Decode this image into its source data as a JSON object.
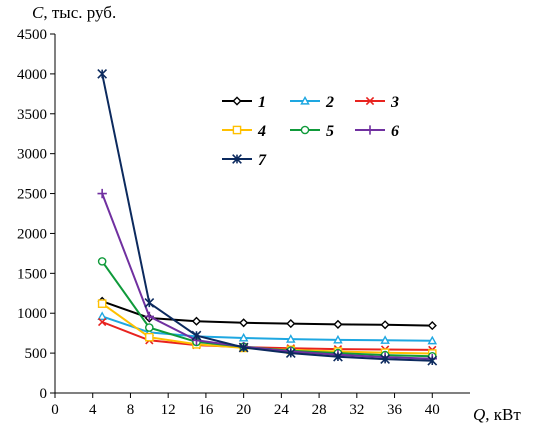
{
  "chart_data": {
    "type": "line",
    "title": "",
    "ylabel": {
      "symbol": "C",
      "unit": ", тыс. руб."
    },
    "xlabel": {
      "symbol": "Q",
      "unit": ", кВт"
    },
    "xlim": [
      0,
      44
    ],
    "ylim": [
      0,
      4500
    ],
    "grid": false,
    "x_ticks": [
      {
        "value": 0,
        "label": "0"
      },
      {
        "value": 4,
        "label": "4"
      },
      {
        "value": 8,
        "label": "8"
      },
      {
        "value": 12,
        "label": "12"
      },
      {
        "value": 16,
        "label": "16"
      },
      {
        "value": 20,
        "label": "20"
      },
      {
        "value": 24,
        "label": "24"
      },
      {
        "value": 28,
        "label": "28"
      },
      {
        "value": 32,
        "label": "32"
      },
      {
        "value": 36,
        "label": "36"
      },
      {
        "value": 40,
        "label": "40"
      }
    ],
    "y_ticks": [
      {
        "value": 0,
        "label": "0"
      },
      {
        "value": 500,
        "label": "500"
      },
      {
        "value": 1000,
        "label": "1000"
      },
      {
        "value": 1500,
        "label": "1500"
      },
      {
        "value": 2000,
        "label": "2000"
      },
      {
        "value": 2500,
        "label": "2500"
      },
      {
        "value": 3000,
        "label": "3000"
      },
      {
        "value": 3500,
        "label": "3500"
      },
      {
        "value": 4000,
        "label": "4000"
      },
      {
        "value": 4500,
        "label": "4500"
      }
    ],
    "legend_position": "top-right",
    "x": [
      5,
      10,
      15,
      20,
      25,
      30,
      35,
      40
    ],
    "series": [
      {
        "name": "1",
        "color": "#000000",
        "marker": "diamond",
        "values": [
          1150,
          940,
          900,
          880,
          870,
          860,
          855,
          845
        ]
      },
      {
        "name": "2",
        "color": "#1ea7e1",
        "marker": "triangle",
        "values": [
          960,
          760,
          710,
          690,
          675,
          665,
          660,
          655
        ]
      },
      {
        "name": "3",
        "color": "#e8231f",
        "marker": "x",
        "values": [
          890,
          660,
          600,
          575,
          560,
          550,
          545,
          540
        ]
      },
      {
        "name": "4",
        "color": "#ffc000",
        "marker": "square",
        "values": [
          1120,
          700,
          610,
          565,
          540,
          520,
          505,
          495
        ]
      },
      {
        "name": "5",
        "color": "#0f9a3a",
        "marker": "circle",
        "values": [
          1650,
          820,
          640,
          580,
          530,
          500,
          475,
          460
        ]
      },
      {
        "name": "6",
        "color": "#7030a0",
        "marker": "plus",
        "values": [
          2500,
          960,
          660,
          580,
          520,
          480,
          450,
          430
        ]
      },
      {
        "name": "7",
        "color": "#0c2a5e",
        "marker": "star",
        "values": [
          4000,
          1130,
          720,
          570,
          500,
          455,
          425,
          405
        ]
      }
    ]
  }
}
